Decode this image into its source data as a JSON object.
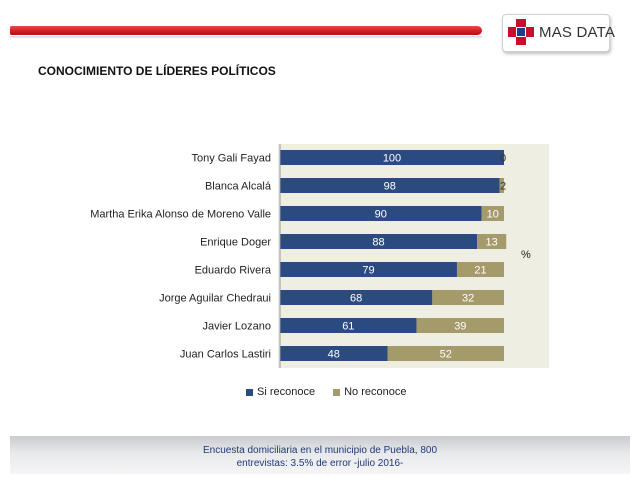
{
  "header": {
    "logo_text": "MAS DATA",
    "brand_red": "#c8102e",
    "brand_blue": "#1c3f94"
  },
  "chart_data": {
    "type": "bar",
    "orientation": "horizontal",
    "stacked": true,
    "title": "CONOCIMIENTO DE LÍDERES POLÍTICOS",
    "unit_label": "%",
    "categories": [
      "Tony Gali Fayad",
      "Blanca Alcalá",
      "Martha Erika Alonso de Moreno Valle",
      "Enrique Doger",
      "Eduardo Rivera",
      "Jorge Aguilar Chedraui",
      "Javier Lozano",
      "Juan Carlos Lastiri"
    ],
    "series": [
      {
        "name": "Si reconoce",
        "values": [
          100,
          98,
          90,
          88,
          79,
          68,
          61,
          48
        ],
        "color": "#2b4b80"
      },
      {
        "name": "No reconoce",
        "values": [
          0,
          2,
          10,
          13,
          21,
          32,
          39,
          52
        ],
        "color": "#a59b6a"
      }
    ],
    "xlim": [
      0,
      100
    ],
    "grid": false,
    "legend_position": "bottom"
  },
  "footer": {
    "line1": "Encuesta domiciliaria en el municipio de Puebla, 800",
    "line2": "entrevistas: 3.5% de error -julio 2016-"
  }
}
